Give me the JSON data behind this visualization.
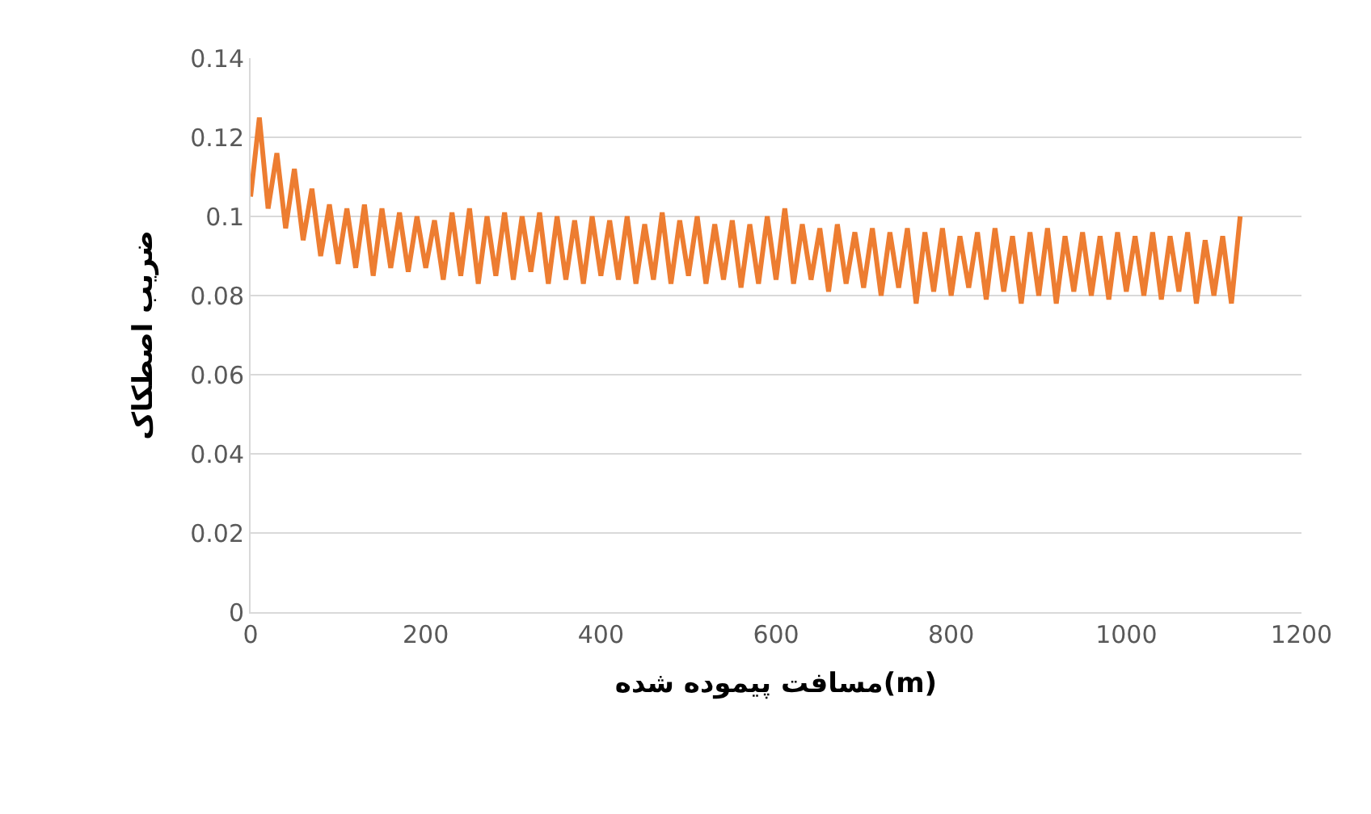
{
  "chart_data": {
    "type": "line",
    "xlabel": "مسافت پیموده شده(m)",
    "ylabel": "ضریب اصطکاک",
    "x": [
      0,
      10,
      20,
      30,
      40,
      50,
      60,
      70,
      80,
      90,
      100,
      110,
      120,
      130,
      140,
      150,
      160,
      170,
      180,
      190,
      200,
      210,
      220,
      230,
      240,
      250,
      260,
      270,
      280,
      290,
      300,
      310,
      320,
      330,
      340,
      350,
      360,
      370,
      380,
      390,
      400,
      410,
      420,
      430,
      440,
      450,
      460,
      470,
      480,
      490,
      500,
      510,
      520,
      530,
      540,
      550,
      560,
      570,
      580,
      590,
      600,
      610,
      620,
      630,
      640,
      650,
      660,
      670,
      680,
      690,
      700,
      710,
      720,
      730,
      740,
      750,
      760,
      770,
      780,
      790,
      800,
      810,
      820,
      830,
      840,
      850,
      860,
      870,
      880,
      890,
      900,
      910,
      920,
      930,
      940,
      950,
      960,
      970,
      980,
      990,
      1000,
      1010,
      1020,
      1030,
      1040,
      1050,
      1060,
      1070,
      1080,
      1090,
      1100,
      1110,
      1120,
      1130
    ],
    "series": [
      {
        "color": "#ed7d31",
        "values": [
          0.105,
          0.125,
          0.102,
          0.116,
          0.097,
          0.112,
          0.094,
          0.107,
          0.09,
          0.103,
          0.088,
          0.102,
          0.087,
          0.103,
          0.085,
          0.102,
          0.087,
          0.101,
          0.086,
          0.1,
          0.087,
          0.099,
          0.084,
          0.101,
          0.085,
          0.102,
          0.083,
          0.1,
          0.085,
          0.101,
          0.084,
          0.1,
          0.086,
          0.101,
          0.083,
          0.1,
          0.084,
          0.099,
          0.083,
          0.1,
          0.085,
          0.099,
          0.084,
          0.1,
          0.083,
          0.098,
          0.084,
          0.101,
          0.083,
          0.099,
          0.085,
          0.1,
          0.083,
          0.098,
          0.084,
          0.099,
          0.082,
          0.098,
          0.083,
          0.1,
          0.084,
          0.102,
          0.083,
          0.098,
          0.084,
          0.097,
          0.081,
          0.098,
          0.083,
          0.096,
          0.082,
          0.097,
          0.08,
          0.096,
          0.082,
          0.097,
          0.078,
          0.096,
          0.081,
          0.097,
          0.08,
          0.095,
          0.082,
          0.096,
          0.079,
          0.097,
          0.081,
          0.095,
          0.078,
          0.096,
          0.08,
          0.097,
          0.078,
          0.095,
          0.081,
          0.096,
          0.08,
          0.095,
          0.079,
          0.096,
          0.081,
          0.095,
          0.08,
          0.096,
          0.079,
          0.095,
          0.081,
          0.096,
          0.078,
          0.094,
          0.08,
          0.095,
          0.078,
          0.1
        ]
      }
    ],
    "xlim": [
      0,
      1200
    ],
    "xticks": [
      0,
      200,
      400,
      600,
      800,
      1000,
      1200
    ],
    "ylim": [
      0,
      0.14
    ],
    "yticks": [
      0,
      0.02,
      0.04,
      0.06,
      0.08,
      0.1,
      0.12,
      0.14
    ],
    "grid": "y",
    "marker": "none",
    "line_style": "solid"
  }
}
